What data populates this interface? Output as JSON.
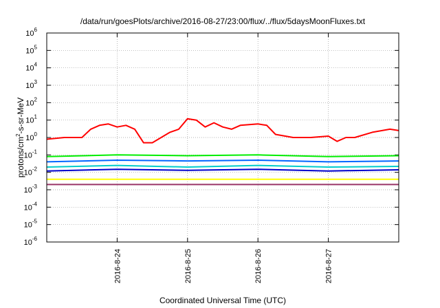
{
  "chart_data": {
    "type": "line",
    "title": "/data/run/goesPlots/archive/2016-08-27/23:00/flux/../flux/5daysMoonFluxes.txt",
    "xlabel": "Coordinated Universal Time (UTC)",
    "ylabel": "protons/cm2-s-sr-MeV",
    "y_scale": "log",
    "ylim": [
      1e-06,
      1000000.0
    ],
    "xlim": [
      "2016-08-23T00:00",
      "2016-08-28T00:00"
    ],
    "grid": true,
    "legend": "none",
    "x_ticks": [
      "2016-8-24",
      "2016-8-25",
      "2016-8-26",
      "2016-8-27"
    ],
    "y_ticks": [
      {
        "base": "10",
        "exp": "-6",
        "value": 1e-06
      },
      {
        "base": "10",
        "exp": "-5",
        "value": 1e-05
      },
      {
        "base": "10",
        "exp": "-4",
        "value": 0.0001
      },
      {
        "base": "10",
        "exp": "-3",
        "value": 0.001
      },
      {
        "base": "10",
        "exp": "-2",
        "value": 0.01
      },
      {
        "base": "10",
        "exp": "-1",
        "value": 0.1
      },
      {
        "base": "10",
        "exp": "0",
        "value": 1
      },
      {
        "base": "10",
        "exp": "1",
        "value": 10
      },
      {
        "base": "10",
        "exp": "2",
        "value": 100
      },
      {
        "base": "10",
        "exp": "3",
        "value": 1000
      },
      {
        "base": "10",
        "exp": "4",
        "value": 10000
      },
      {
        "base": "10",
        "exp": "5",
        "value": 100000
      },
      {
        "base": "10",
        "exp": "6",
        "value": 1000000
      }
    ],
    "series": [
      {
        "color": "#ff0000",
        "x": [
          "2016-08-23T00:00",
          "2016-08-23T06:00",
          "2016-08-23T12:00",
          "2016-08-23T15:00",
          "2016-08-23T18:00",
          "2016-08-23T21:00",
          "2016-08-24T00:00",
          "2016-08-24T03:00",
          "2016-08-24T06:00",
          "2016-08-24T09:00",
          "2016-08-24T12:00",
          "2016-08-24T18:00",
          "2016-08-24T21:00",
          "2016-08-25T00:00",
          "2016-08-25T03:00",
          "2016-08-25T06:00",
          "2016-08-25T09:00",
          "2016-08-25T12:00",
          "2016-08-25T15:00",
          "2016-08-25T18:00",
          "2016-08-26T00:00",
          "2016-08-26T03:00",
          "2016-08-26T06:00",
          "2016-08-26T12:00",
          "2016-08-26T18:00",
          "2016-08-27T00:00",
          "2016-08-27T03:00",
          "2016-08-27T06:00",
          "2016-08-27T09:00",
          "2016-08-27T15:00",
          "2016-08-27T21:00",
          "2016-08-28T00:00"
        ],
        "values": [
          0.8,
          1.0,
          1.0,
          3,
          5,
          6,
          4,
          5,
          3,
          0.5,
          0.5,
          2,
          3,
          12,
          10,
          4,
          7,
          4,
          3,
          5,
          6,
          5,
          1.5,
          1.0,
          1.0,
          1.2,
          0.6,
          1.0,
          1.0,
          2,
          3,
          2.5
        ]
      },
      {
        "color": "#00ee00",
        "x": [
          "2016-08-23T00:00",
          "2016-08-24T00:00",
          "2016-08-25T00:00",
          "2016-08-26T00:00",
          "2016-08-27T00:00",
          "2016-08-28T00:00"
        ],
        "values": [
          0.08,
          0.1,
          0.09,
          0.1,
          0.08,
          0.09
        ]
      },
      {
        "color": "#0066ff",
        "x": [
          "2016-08-23T00:00",
          "2016-08-24T00:00",
          "2016-08-25T00:00",
          "2016-08-26T00:00",
          "2016-08-27T00:00",
          "2016-08-28T00:00"
        ],
        "values": [
          0.04,
          0.05,
          0.045,
          0.05,
          0.04,
          0.045
        ]
      },
      {
        "color": "#00cccc",
        "x": [
          "2016-08-23T00:00",
          "2016-08-24T00:00",
          "2016-08-25T00:00",
          "2016-08-26T00:00",
          "2016-08-27T00:00",
          "2016-08-28T00:00"
        ],
        "values": [
          0.02,
          0.025,
          0.02,
          0.025,
          0.02,
          0.022
        ]
      },
      {
        "color": "#0000cc",
        "x": [
          "2016-08-23T00:00",
          "2016-08-24T00:00",
          "2016-08-25T00:00",
          "2016-08-26T00:00",
          "2016-08-27T00:00",
          "2016-08-28T00:00"
        ],
        "values": [
          0.012,
          0.015,
          0.013,
          0.015,
          0.012,
          0.014
        ]
      },
      {
        "color": "#ffff00",
        "x": [
          "2016-08-23T00:00",
          "2016-08-24T00:00",
          "2016-08-25T00:00",
          "2016-08-26T00:00",
          "2016-08-27T00:00",
          "2016-08-28T00:00"
        ],
        "values": [
          0.004,
          0.004,
          0.004,
          0.004,
          0.004,
          0.004
        ]
      },
      {
        "color": "#993366",
        "x": [
          "2016-08-23T00:00",
          "2016-08-24T00:00",
          "2016-08-25T00:00",
          "2016-08-26T00:00",
          "2016-08-27T00:00",
          "2016-08-28T00:00"
        ],
        "values": [
          0.002,
          0.002,
          0.002,
          0.002,
          0.002,
          0.002
        ]
      }
    ]
  }
}
